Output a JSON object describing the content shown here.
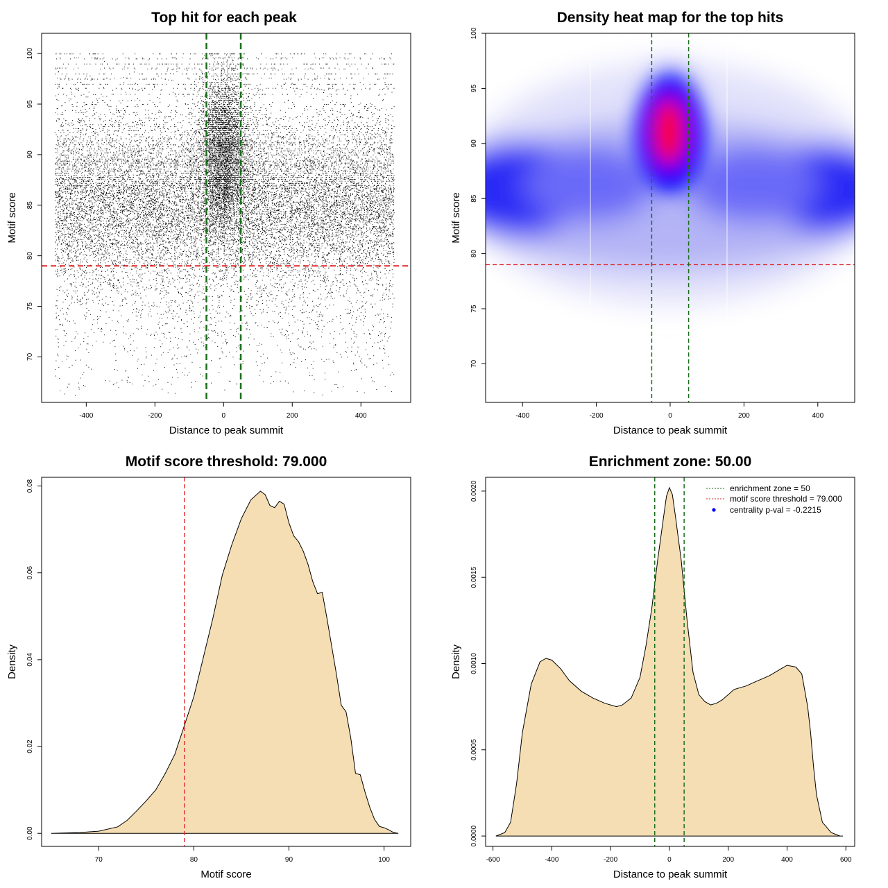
{
  "chart_data": [
    {
      "id": "scatter",
      "type": "scatter",
      "title": "Top hit for each peak",
      "xlabel": "Distance to peak summit",
      "ylabel": "Motif score",
      "xlim": [
        -530,
        545
      ],
      "ylim": [
        65.5,
        102
      ],
      "xticks": [
        -400,
        -200,
        0,
        200,
        400
      ],
      "yticks": [
        70,
        75,
        80,
        85,
        90,
        95,
        100
      ],
      "xtick_labels": [
        "-400",
        "-200",
        "0",
        "200",
        "400"
      ],
      "ytick_labels": [
        "70",
        "75",
        "80",
        "85",
        "90",
        "95",
        "100"
      ],
      "threshold_y": 79,
      "zone_x": [
        -50,
        50
      ],
      "points_described": "several tens of thousands of top-hit points spanning distance -490 to 495, dense band between score 80 and 95, concentrated near the summit",
      "colors": {
        "points": "#000000",
        "threshold": "#e0262a",
        "zone": "#1a6e1a"
      }
    },
    {
      "id": "heat",
      "type": "heatmap",
      "title": "Density heat map for the top hits",
      "xlabel": "Distance to peak summit",
      "ylabel": "Motif score",
      "xlim": [
        -500,
        500
      ],
      "ylim": [
        66.5,
        100
      ],
      "xticks": [
        -400,
        -200,
        0,
        200,
        400
      ],
      "yticks": [
        70,
        75,
        80,
        85,
        90,
        95,
        100
      ],
      "xtick_labels": [
        "-400",
        "-200",
        "0",
        "200",
        "400"
      ],
      "ytick_labels": [
        "70",
        "75",
        "80",
        "85",
        "90",
        "95",
        "100"
      ],
      "threshold_y": 79,
      "zone_x": [
        -50,
        50
      ],
      "hotspots": [
        {
          "x": 0,
          "y": 91.8,
          "peak": "red",
          "note": "maximum density near summit"
        },
        {
          "x": -400,
          "y": 86.5,
          "peak": "blue"
        },
        {
          "x": 420,
          "y": 86.5,
          "peak": "blue"
        }
      ],
      "colors": {
        "low": "#ffffff",
        "mid": "#0000ff",
        "high": "#ff0000",
        "threshold": "#e0262a",
        "zone": "#1a6e1a"
      }
    },
    {
      "id": "score-density",
      "type": "area",
      "title": "Motif score threshold: 79.000",
      "xlabel": "Motif score",
      "ylabel": "Density",
      "xlim": [
        64,
        102.8
      ],
      "ylim": [
        -0.003,
        0.082
      ],
      "xticks": [
        70,
        80,
        90,
        100
      ],
      "yticks": [
        0.0,
        0.02,
        0.04,
        0.06,
        0.08
      ],
      "xtick_labels": [
        "70",
        "80",
        "90",
        "100"
      ],
      "ytick_labels": [
        "0.00",
        "0.02",
        "0.04",
        "0.06",
        "0.08"
      ],
      "threshold_x": 79,
      "x": [
        65,
        68,
        70,
        72,
        73,
        74,
        75,
        76,
        77,
        78,
        79,
        80,
        81,
        82,
        83,
        84,
        85,
        86,
        87,
        87.5,
        88,
        88.5,
        89,
        89.5,
        90,
        90.5,
        91,
        91.5,
        92,
        92.5,
        93,
        93.5,
        94,
        94.5,
        95,
        95.5,
        96,
        96.5,
        97,
        97.5,
        98,
        98.5,
        99,
        99.5,
        100,
        100.5,
        101,
        101.5
      ],
      "y": [
        0.0,
        0.0002,
        0.0005,
        0.0015,
        0.003,
        0.0052,
        0.0075,
        0.01,
        0.0138,
        0.0182,
        0.0248,
        0.0315,
        0.0405,
        0.0495,
        0.0595,
        0.0665,
        0.0725,
        0.0768,
        0.0788,
        0.078,
        0.0755,
        0.075,
        0.0765,
        0.0758,
        0.0715,
        0.0685,
        0.0672,
        0.065,
        0.062,
        0.058,
        0.0552,
        0.0555,
        0.0495,
        0.043,
        0.0365,
        0.0295,
        0.028,
        0.022,
        0.0138,
        0.0135,
        0.0095,
        0.006,
        0.0032,
        0.0016,
        0.0013,
        0.0008,
        0.0002,
        0.0
      ],
      "colors": {
        "fill": "#f5deb3",
        "line": "#000000",
        "threshold": "#e0262a"
      }
    },
    {
      "id": "enrich-density",
      "type": "area",
      "title": "Enrichment zone: 50.00",
      "xlabel": "Distance to peak summit",
      "ylabel": "Density",
      "xlim": [
        -625,
        630
      ],
      "ylim": [
        -6e-05,
        0.00208
      ],
      "xticks": [
        -600,
        -400,
        -200,
        0,
        200,
        400,
        600
      ],
      "yticks": [
        0.0,
        0.0005,
        0.001,
        0.0015,
        0.002
      ],
      "xtick_labels": [
        "-600",
        "-400",
        "-200",
        "0",
        "200",
        "400",
        "600"
      ],
      "ytick_labels": [
        "0.0000",
        "0.0005",
        "0.0010",
        "0.0015",
        "0.0020"
      ],
      "zone_x": [
        -50,
        50
      ],
      "x": [
        -590,
        -560,
        -540,
        -520,
        -500,
        -470,
        -440,
        -420,
        -400,
        -370,
        -340,
        -300,
        -260,
        -220,
        -180,
        -160,
        -130,
        -100,
        -80,
        -60,
        -40,
        -20,
        -10,
        0,
        10,
        20,
        40,
        60,
        80,
        100,
        120,
        140,
        160,
        180,
        220,
        260,
        300,
        340,
        380,
        400,
        430,
        450,
        470,
        480,
        490,
        500,
        520,
        550,
        580,
        590
      ],
      "y": [
        0.0,
        2e-05,
        8e-05,
        0.0003,
        0.0006,
        0.00088,
        0.00101,
        0.00103,
        0.00102,
        0.00097,
        0.0009,
        0.00084,
        0.0008,
        0.00077,
        0.00075,
        0.00076,
        0.0008,
        0.00092,
        0.0011,
        0.00132,
        0.0016,
        0.00185,
        0.00197,
        0.00202,
        0.00198,
        0.00186,
        0.0016,
        0.00125,
        0.00095,
        0.00082,
        0.00078,
        0.00076,
        0.00077,
        0.00079,
        0.00085,
        0.00087,
        0.0009,
        0.00093,
        0.00097,
        0.00099,
        0.00098,
        0.00094,
        0.00075,
        0.0006,
        0.0004,
        0.00024,
        8e-05,
        2e-05,
        0.0,
        0.0
      ],
      "legend": {
        "position": "top-right",
        "entries": [
          {
            "label": "enrichment zone = 50",
            "style": "dotted",
            "color": "#1a6e1a"
          },
          {
            "label": "motif score threshold = 79.000",
            "style": "dotted",
            "color": "#e0262a"
          },
          {
            "label": "centrality p-val = -0.2215",
            "style": "point",
            "color": "#0000ff"
          }
        ]
      },
      "colors": {
        "fill": "#f5deb3",
        "line": "#000000",
        "zone": "#1a6e1a"
      }
    }
  ]
}
